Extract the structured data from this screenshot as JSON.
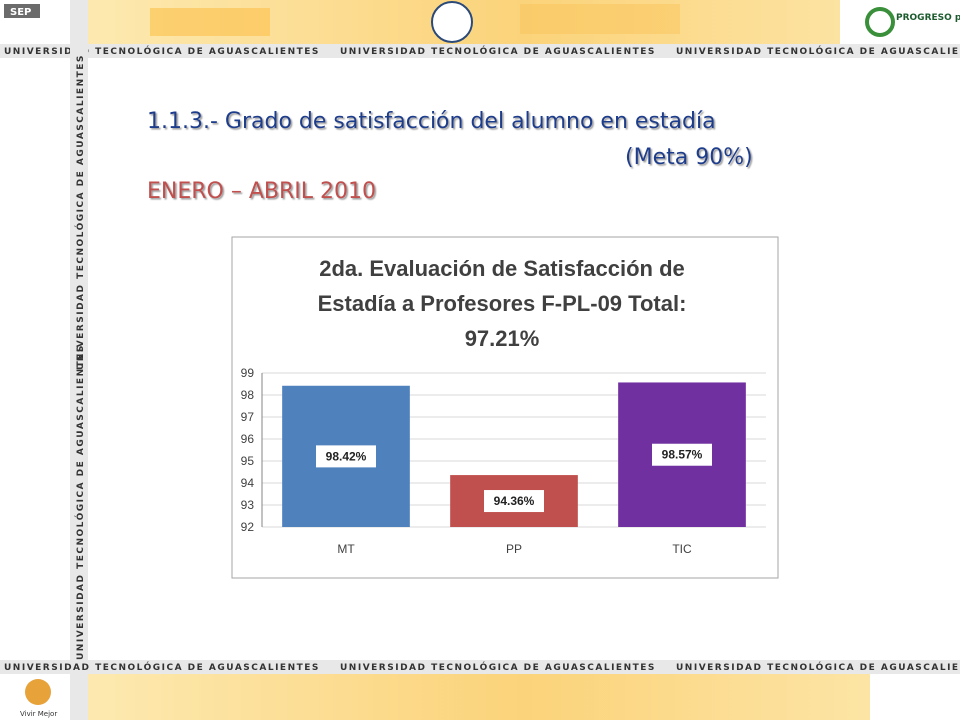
{
  "banner": "UNIVERSIDAD TECNOLÓGICA DE AGUASCALIENTES",
  "logos": {
    "sep": "SEP",
    "progreso": "PROGRESO para todos",
    "vivir": "Vivir Mejor"
  },
  "slide": {
    "title": "1.1.3.- Grado de satisfacción del alumno en estadía",
    "goal": "(Meta 90%)",
    "period": "ENERO – ABRIL 2010"
  },
  "chart_data": {
    "type": "bar",
    "title_lines": [
      "2da. Evaluación de Satisfacción de",
      "Estadía a Profesores F-PL-09 Total:",
      "97.21%"
    ],
    "categories": [
      "MT",
      "PP",
      "TIC"
    ],
    "values": [
      98.42,
      94.36,
      98.57
    ],
    "value_labels": [
      "98.42%",
      "94.36%",
      "98.57%"
    ],
    "colors": [
      "#4f81bd",
      "#c0504d",
      "#7030a0"
    ],
    "ylim": [
      92,
      99
    ],
    "yticks": [
      92,
      93,
      94,
      95,
      96,
      97,
      98,
      99
    ],
    "grid": true
  }
}
